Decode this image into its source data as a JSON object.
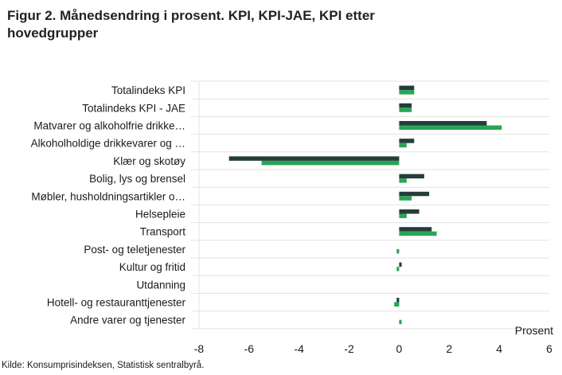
{
  "title_line1": "Figur 2. Månedsendring i prosent. KPI, KPI-JAE, KPI etter",
  "title_line2": "hovedgrupper",
  "source": "Kilde: Konsumprisindeksen, Statistisk sentralbyrå.",
  "colors": {
    "KPI": "#253d3a",
    "KPI-JAE": "#2aa557",
    "gridline": "#e3e3e3"
  },
  "chart_data": {
    "type": "bar",
    "orientation": "horizontal",
    "categories": [
      "Totalindeks KPI",
      "Totalindeks KPI - JAE",
      "Matvarer og alkoholfrie drikke…",
      "Alkoholholdige drikkevarer og …",
      "Klær og skotøy",
      "Bolig, lys og brensel",
      "Møbler, husholdningsartikler o…",
      "Helsepleie",
      "Transport",
      "Post- og teletjenester",
      "Kultur og fritid",
      "Utdanning",
      "Hotell- og restauranttjenester",
      "Andre varer og tjenester"
    ],
    "series": [
      {
        "key": "KPI",
        "values": [
          0.6,
          0.5,
          3.5,
          0.6,
          -6.8,
          1.0,
          1.2,
          0.8,
          1.3,
          0.0,
          0.1,
          0.0,
          -0.1,
          0.0
        ]
      },
      {
        "key": "KPI-JAE",
        "values": [
          0.6,
          0.5,
          4.1,
          0.3,
          -5.5,
          0.3,
          0.5,
          0.3,
          1.5,
          -0.1,
          -0.1,
          0.0,
          -0.2,
          0.1
        ]
      }
    ],
    "xlim": [
      -8,
      6
    ],
    "xticks": [
      -8,
      -6,
      -4,
      -2,
      0,
      2,
      4,
      6
    ],
    "xlabel": "Prosent",
    "grid": "horizontal category separators"
  }
}
